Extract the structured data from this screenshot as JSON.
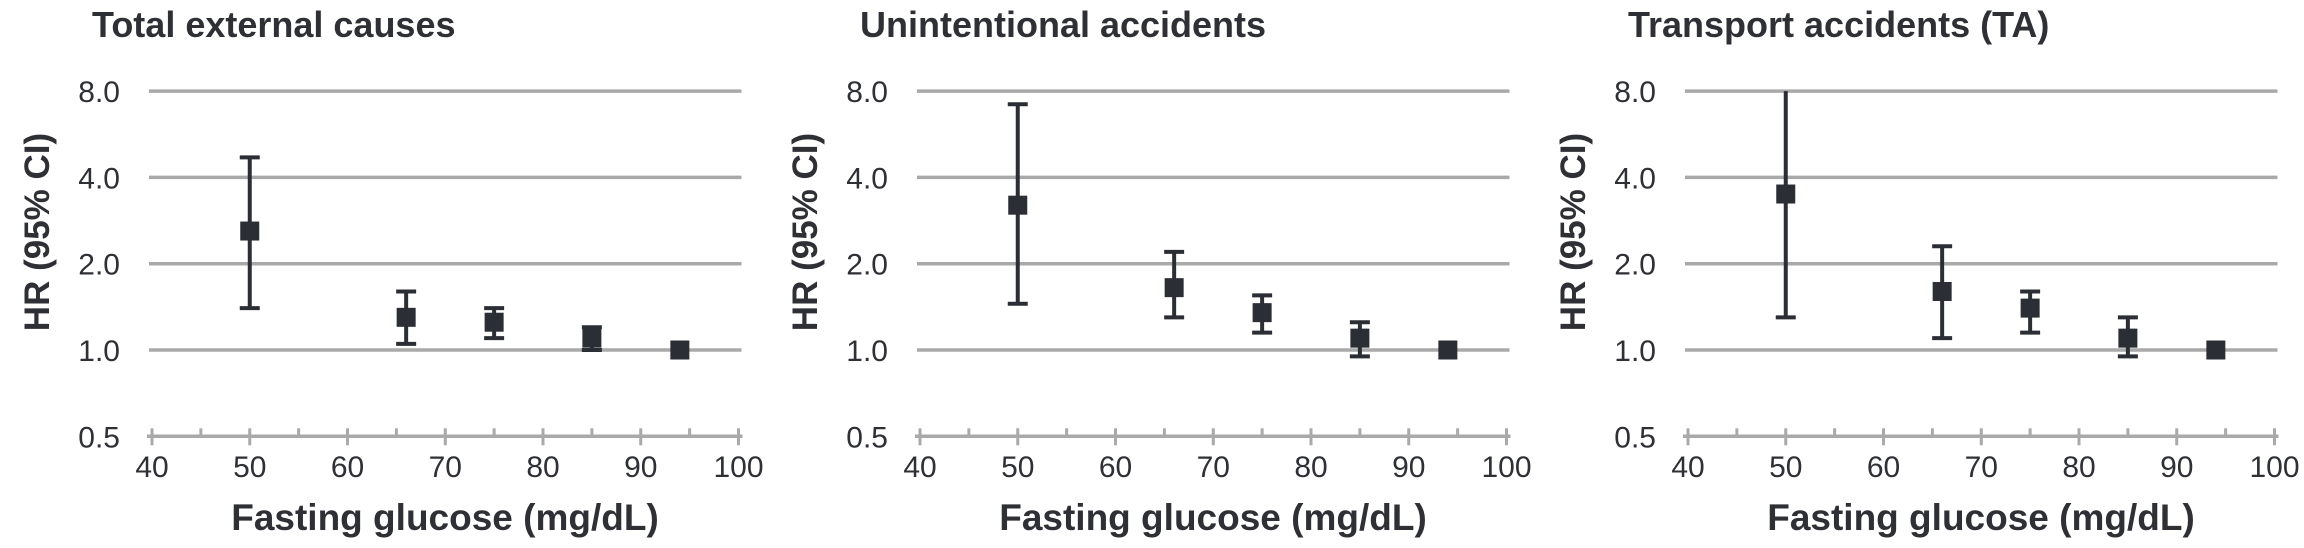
{
  "figure": {
    "description": "Hazard ratios (95% CI) for injury mortality by fasting glucose level, three outcome panels",
    "colors": {
      "marker": "#2b2e35",
      "grid": "#a9a9a9",
      "text": "#2e3036",
      "background": "#ffffff"
    }
  },
  "chart_data": [
    {
      "type": "scatter",
      "title": "Total external causes",
      "xlabel": "Fasting glucose (mg/dL)",
      "ylabel": "HR (95% CI)",
      "x_scale": "linear",
      "y_scale": "log2",
      "xlim": [
        40,
        100
      ],
      "ylim": [
        0.5,
        8.0
      ],
      "x_ticks_major": [
        40,
        50,
        60,
        70,
        80,
        90,
        100
      ],
      "x_ticks_minor": [
        45,
        55,
        65,
        75,
        85,
        95
      ],
      "y_ticks": [
        "8.0",
        "4.0",
        "2.0",
        "1.0",
        "0.5"
      ],
      "y_tick_values": [
        8.0,
        4.0,
        2.0,
        1.0,
        0.5
      ],
      "grid": "horizontal",
      "legend": "none",
      "marker": "square",
      "points": [
        {
          "x": 50,
          "hr": 2.6,
          "lo": 1.4,
          "hi": 4.7
        },
        {
          "x": 66,
          "hr": 1.3,
          "lo": 1.05,
          "hi": 1.6
        },
        {
          "x": 75,
          "hr": 1.25,
          "lo": 1.1,
          "hi": 1.4
        },
        {
          "x": 85,
          "hr": 1.1,
          "lo": 1.0,
          "hi": 1.2
        },
        {
          "x": 94,
          "hr": 1.0,
          "lo": null,
          "hi": null
        }
      ]
    },
    {
      "type": "scatter",
      "title": "Unintentional accidents",
      "xlabel": "Fasting glucose (mg/dL)",
      "ylabel": "HR (95% CI)",
      "x_scale": "linear",
      "y_scale": "log2",
      "xlim": [
        40,
        100
      ],
      "ylim": [
        0.5,
        8.0
      ],
      "x_ticks_major": [
        40,
        50,
        60,
        70,
        80,
        90,
        100
      ],
      "x_ticks_minor": [
        45,
        55,
        65,
        75,
        85,
        95
      ],
      "y_ticks": [
        "8.0",
        "4.0",
        "2.0",
        "1.0",
        "0.5"
      ],
      "y_tick_values": [
        8.0,
        4.0,
        2.0,
        1.0,
        0.5
      ],
      "grid": "horizontal",
      "legend": "none",
      "marker": "square",
      "points": [
        {
          "x": 50,
          "hr": 3.2,
          "lo": 1.45,
          "hi": 7.2
        },
        {
          "x": 66,
          "hr": 1.65,
          "lo": 1.3,
          "hi": 2.2
        },
        {
          "x": 75,
          "hr": 1.35,
          "lo": 1.15,
          "hi": 1.55
        },
        {
          "x": 85,
          "hr": 1.1,
          "lo": 0.95,
          "hi": 1.25
        },
        {
          "x": 94,
          "hr": 1.0,
          "lo": null,
          "hi": null
        }
      ]
    },
    {
      "type": "scatter",
      "title": "Transport accidents (TA)",
      "xlabel": "Fasting glucose (mg/dL)",
      "ylabel": "HR (95% CI)",
      "x_scale": "linear",
      "y_scale": "log2",
      "xlim": [
        40,
        100
      ],
      "ylim": [
        0.5,
        8.0
      ],
      "x_ticks_major": [
        40,
        50,
        60,
        70,
        80,
        90,
        100
      ],
      "x_ticks_minor": [
        45,
        55,
        65,
        75,
        85,
        95
      ],
      "y_ticks": [
        "8.0",
        "4.0",
        "2.0",
        "1.0",
        "0.5"
      ],
      "y_tick_values": [
        8.0,
        4.0,
        2.0,
        1.0,
        0.5
      ],
      "grid": "horizontal",
      "legend": "none",
      "marker": "square",
      "points": [
        {
          "x": 50,
          "hr": 3.5,
          "lo": 1.3,
          "hi": 8.0
        },
        {
          "x": 66,
          "hr": 1.6,
          "lo": 1.1,
          "hi": 2.3
        },
        {
          "x": 75,
          "hr": 1.4,
          "lo": 1.15,
          "hi": 1.6
        },
        {
          "x": 85,
          "hr": 1.1,
          "lo": 0.95,
          "hi": 1.3
        },
        {
          "x": 94,
          "hr": 1.0,
          "lo": null,
          "hi": null
        }
      ]
    }
  ]
}
